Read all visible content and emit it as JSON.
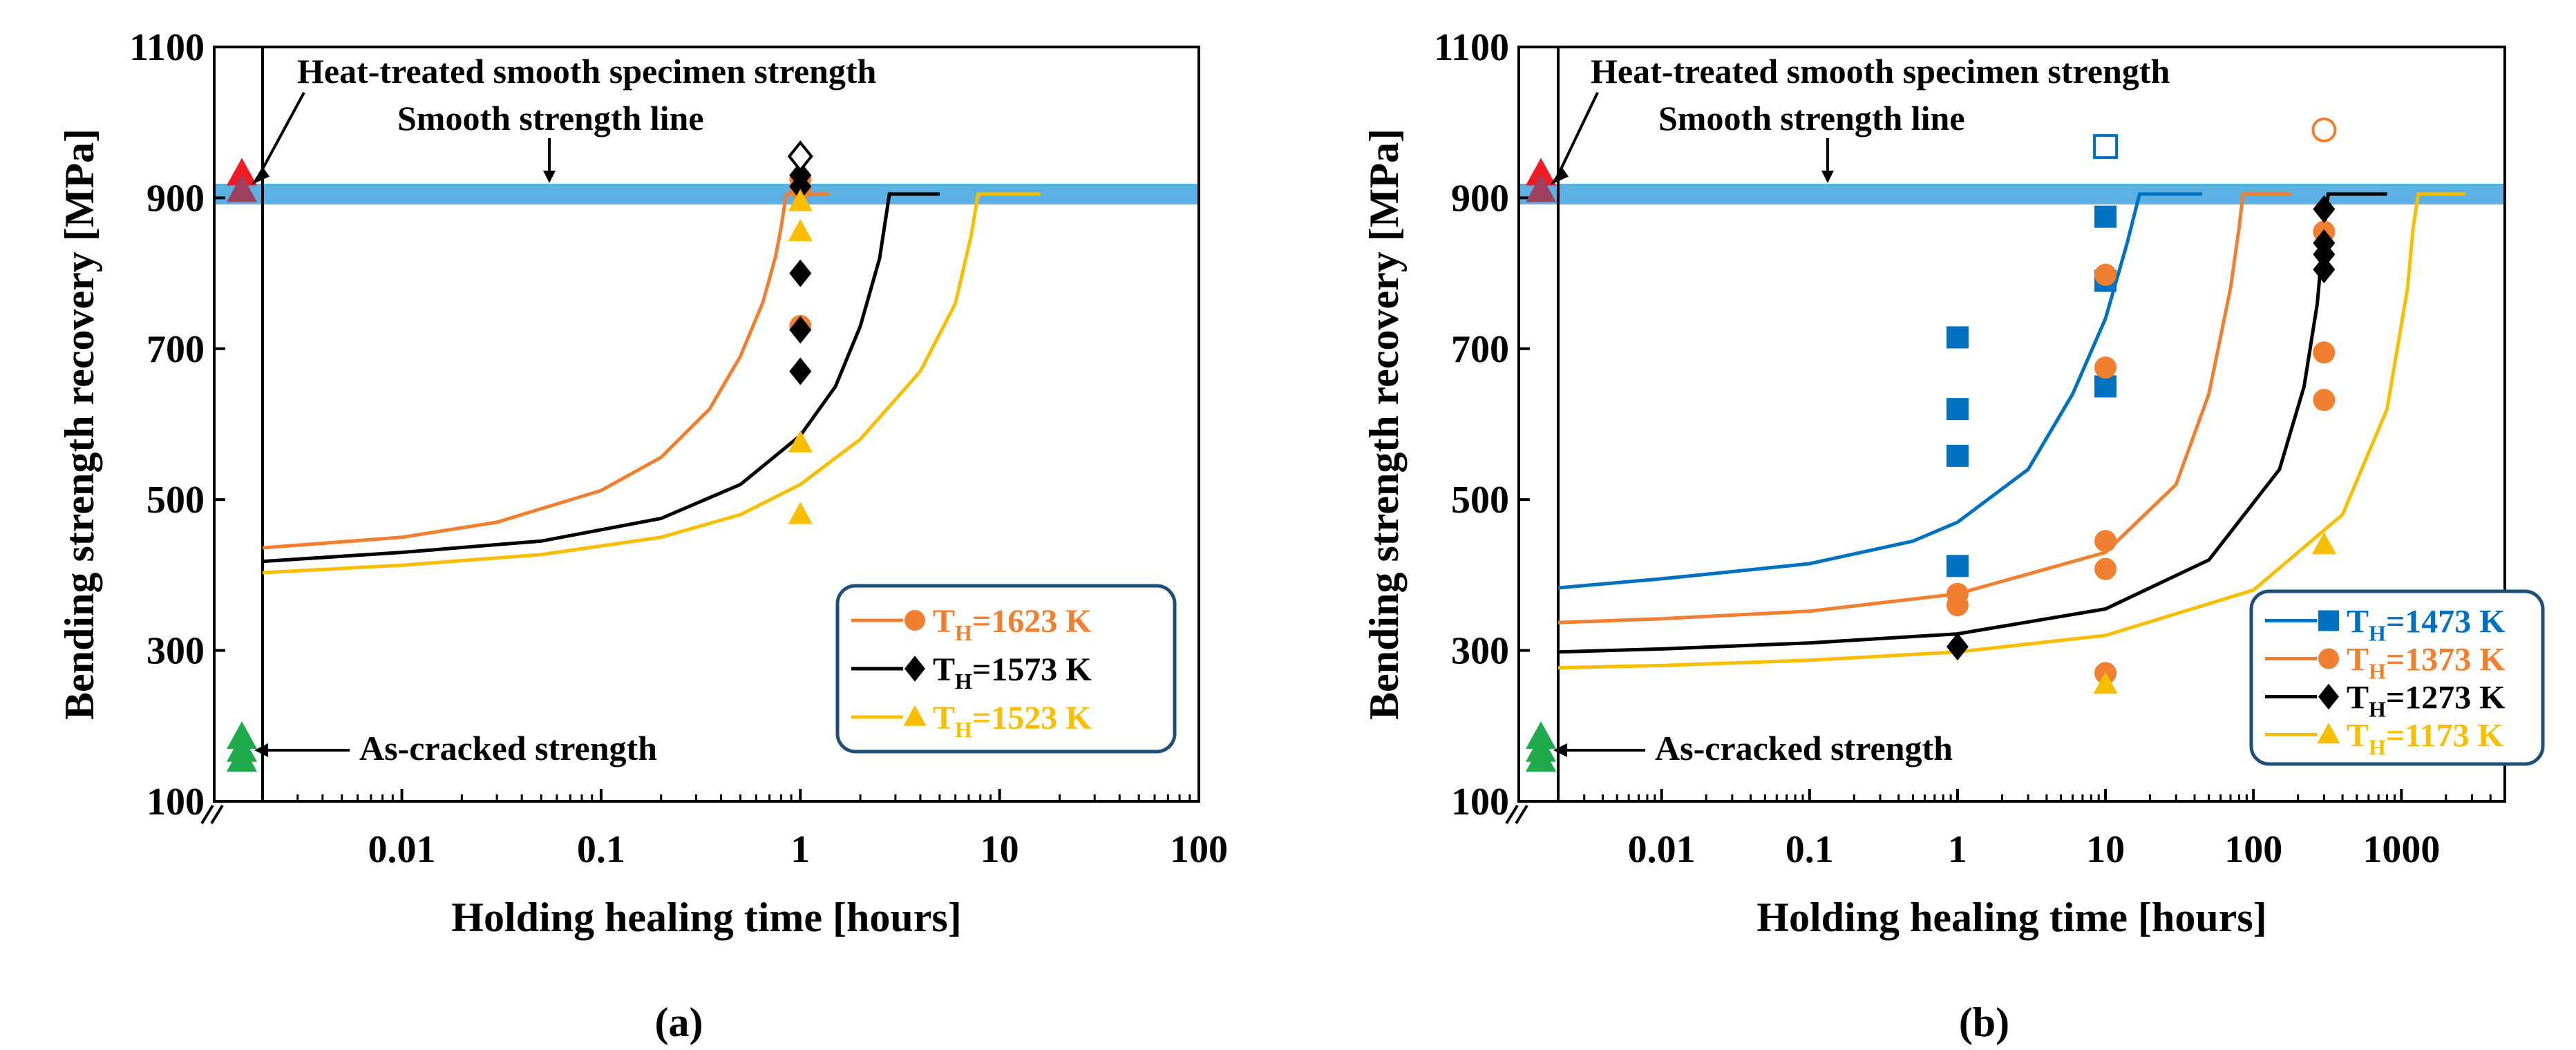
{
  "chart_data": [
    {
      "type": "scatter",
      "panel_label": "(a)",
      "xlabel": "Holding healing time [hours]",
      "ylabel": "Bending strength recovery [MPa]",
      "x_scale": "log",
      "xlim": [
        0.002,
        100
      ],
      "ylim": [
        100,
        1100
      ],
      "x_ticks": [
        0.01,
        0.1,
        1,
        10,
        100
      ],
      "x_tick_labels": [
        "0.01",
        "0.1",
        "1",
        "10",
        "100"
      ],
      "y_ticks": [
        100,
        300,
        500,
        700,
        900,
        1100
      ],
      "smooth_strength_line": 905,
      "annotations": {
        "heat_treated": "Heat-treated smooth specimen strength",
        "smooth_line": "Smooth strength line",
        "as_cracked": "As-cracked strength"
      },
      "reference_points": {
        "heat_treated_values": [
          932,
          910
        ],
        "as_cracked_values": [
          185,
          168,
          155
        ]
      },
      "series": [
        {
          "name": "T_H=1623 K",
          "legend_label": "T",
          "legend_sub": "H",
          "legend_value": "=1623 K",
          "color": "#F07F30",
          "marker": "circle",
          "x": [
            1,
            1,
            1
          ],
          "y": [
            730,
            912,
            925
          ],
          "open_points": [],
          "curve": [
            [
              0.002,
              436
            ],
            [
              0.01,
              450
            ],
            [
              0.03,
              470
            ],
            [
              0.1,
              512
            ],
            [
              0.2,
              556
            ],
            [
              0.35,
              620
            ],
            [
              0.5,
              690
            ],
            [
              0.65,
              762
            ],
            [
              0.75,
              822
            ],
            [
              0.8,
              860
            ],
            [
              0.85,
              905
            ],
            [
              1.4,
              905
            ]
          ]
        },
        {
          "name": "T_H=1573 K",
          "legend_label": "T",
          "legend_sub": "H",
          "legend_value": "=1573 K",
          "color": "#000000",
          "marker": "diamond",
          "x": [
            1,
            1,
            1,
            1,
            1
          ],
          "y": [
            670,
            725,
            800,
            915,
            930
          ],
          "open_points": [
            [
              1,
              955
            ]
          ],
          "curve": [
            [
              0.002,
              418
            ],
            [
              0.01,
              430
            ],
            [
              0.05,
              445
            ],
            [
              0.2,
              475
            ],
            [
              0.5,
              520
            ],
            [
              1,
              585
            ],
            [
              1.5,
              650
            ],
            [
              2,
              730
            ],
            [
              2.5,
              820
            ],
            [
              2.8,
              905
            ],
            [
              5,
              905
            ]
          ]
        },
        {
          "name": "T_H=1523 K",
          "legend_label": "T",
          "legend_sub": "H",
          "legend_value": "=1523 K",
          "color": "#F9BE00",
          "marker": "triangle",
          "x": [
            1,
            1,
            1,
            1
          ],
          "y": [
            480,
            575,
            855,
            895
          ],
          "open_points": [],
          "curve": [
            [
              0.002,
              403
            ],
            [
              0.01,
              413
            ],
            [
              0.05,
              427
            ],
            [
              0.2,
              450
            ],
            [
              0.5,
              480
            ],
            [
              1,
              520
            ],
            [
              2,
              580
            ],
            [
              4,
              670
            ],
            [
              6,
              760
            ],
            [
              7.2,
              850
            ],
            [
              7.8,
              905
            ],
            [
              16,
              905
            ]
          ]
        }
      ]
    },
    {
      "type": "scatter",
      "panel_label": "(b)",
      "xlabel": "Holding healing time [hours]",
      "ylabel": "Bending strength recovery [MPa]",
      "x_scale": "log",
      "xlim": [
        0.002,
        5000
      ],
      "ylim": [
        100,
        1100
      ],
      "x_ticks": [
        0.01,
        0.1,
        1,
        10,
        100,
        1000
      ],
      "x_tick_labels": [
        "0.01",
        "0.1",
        "1",
        "10",
        "100",
        "1000"
      ],
      "y_ticks": [
        100,
        300,
        500,
        700,
        900,
        1100
      ],
      "smooth_strength_line": 905,
      "annotations": {
        "heat_treated": "Heat-treated smooth specimen strength",
        "smooth_line": "Smooth strength line",
        "as_cracked": "As-cracked strength"
      },
      "reference_points": {
        "heat_treated_values": [
          932,
          910
        ],
        "as_cracked_values": [
          185,
          168,
          155
        ]
      },
      "series": [
        {
          "name": "T_H=1473 K",
          "legend_label": "T",
          "legend_sub": "H",
          "legend_value": "=1473 K",
          "color": "#0070C0",
          "marker": "square",
          "x": [
            1,
            1,
            1,
            1,
            10,
            10,
            10
          ],
          "y": [
            412,
            558,
            620,
            715,
            650,
            790,
            875
          ],
          "open_points": [
            [
              10,
              968
            ]
          ],
          "curve": [
            [
              0.002,
              383
            ],
            [
              0.01,
              395
            ],
            [
              0.1,
              415
            ],
            [
              0.5,
              445
            ],
            [
              1,
              470
            ],
            [
              3,
              540
            ],
            [
              6,
              640
            ],
            [
              10,
              740
            ],
            [
              14,
              840
            ],
            [
              17,
              905
            ],
            [
              45,
              905
            ]
          ]
        },
        {
          "name": "T_H=1373 K",
          "legend_label": "T",
          "legend_sub": "H",
          "legend_value": "=1373 K",
          "color": "#F07F30",
          "marker": "circle",
          "x": [
            1,
            1,
            10,
            10,
            10,
            10,
            10,
            300,
            300,
            300
          ],
          "y": [
            360,
            375,
            270,
            408,
            445,
            675,
            798,
            632,
            695,
            855
          ],
          "open_points": [
            [
              300,
              990
            ]
          ],
          "curve": [
            [
              0.002,
              337
            ],
            [
              0.01,
              342
            ],
            [
              0.1,
              352
            ],
            [
              1,
              375
            ],
            [
              10,
              430
            ],
            [
              30,
              520
            ],
            [
              50,
              640
            ],
            [
              70,
              780
            ],
            [
              80,
              860
            ],
            [
              85,
              905
            ],
            [
              180,
              905
            ]
          ]
        },
        {
          "name": "T_H=1273 K",
          "legend_label": "T",
          "legend_sub": "H",
          "legend_value": "=1273 K",
          "color": "#000000",
          "marker": "diamond",
          "x": [
            1,
            300,
            300,
            300,
            300
          ],
          "y": [
            305,
            805,
            825,
            840,
            885
          ],
          "open_points": [],
          "curve": [
            [
              0.002,
              298
            ],
            [
              0.01,
              302
            ],
            [
              0.1,
              310
            ],
            [
              1,
              322
            ],
            [
              10,
              355
            ],
            [
              50,
              420
            ],
            [
              150,
              540
            ],
            [
              220,
              650
            ],
            [
              270,
              760
            ],
            [
              300,
              860
            ],
            [
              320,
              905
            ],
            [
              800,
              905
            ]
          ]
        },
        {
          "name": "T_H=1173 K",
          "legend_label": "T",
          "legend_sub": "H",
          "legend_value": "=1173 K",
          "color": "#F9BE00",
          "marker": "triangle",
          "x": [
            10,
            300
          ],
          "y": [
            255,
            440
          ],
          "open_points": [],
          "curve": [
            [
              0.002,
              277
            ],
            [
              0.01,
              280
            ],
            [
              0.1,
              287
            ],
            [
              1,
              298
            ],
            [
              10,
              320
            ],
            [
              100,
              380
            ],
            [
              400,
              480
            ],
            [
              800,
              620
            ],
            [
              1100,
              780
            ],
            [
              1200,
              860
            ],
            [
              1300,
              905
            ],
            [
              2700,
              905
            ]
          ]
        }
      ]
    }
  ]
}
